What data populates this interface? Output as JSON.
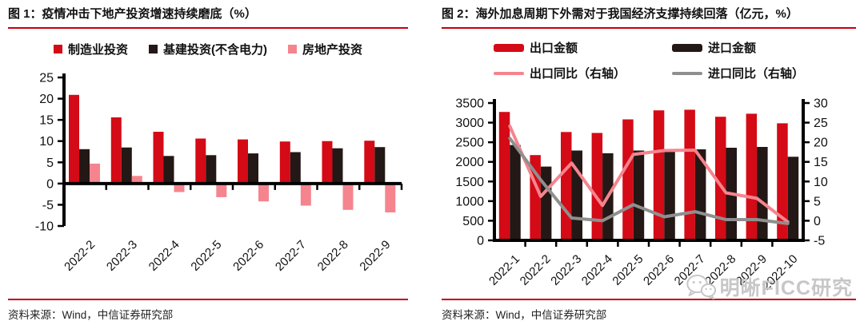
{
  "figure1": {
    "title": "图 1：疫情冲击下地产投资增速持续磨底（%）",
    "source": "资料来源：Wind，中信证券研究部",
    "chart_data": {
      "type": "bar",
      "categories": [
        "2022-2",
        "2022-3",
        "2022-4",
        "2022-5",
        "2022-6",
        "2022-7",
        "2022-8",
        "2022-9"
      ],
      "series": [
        {
          "name": "制造业投资",
          "color": "#d40a16",
          "values": [
            20.9,
            15.6,
            12.2,
            10.6,
            10.4,
            9.9,
            10.0,
            10.1
          ]
        },
        {
          "name": "基建投资(不含电力)",
          "color": "#231815",
          "values": [
            8.1,
            8.5,
            6.5,
            6.7,
            7.1,
            7.4,
            8.3,
            8.6
          ]
        },
        {
          "name": "房地产投资",
          "color": "#f5848e",
          "values": [
            4.7,
            1.8,
            -2.0,
            -3.2,
            -4.2,
            -5.2,
            -6.2,
            -6.8
          ]
        }
      ],
      "ylim": [
        -10,
        25
      ],
      "ytick_step": 5,
      "grid": false,
      "legend_position": "top"
    }
  },
  "figure2": {
    "title": "图 2：海外加息周期下外需对于我国经济支撑持续回落（亿元，%）",
    "source": "资料来源：Wind，中信证券研究部",
    "chart_data": {
      "type": "bar+line",
      "categories": [
        "2022-1",
        "2022-2",
        "2022-3",
        "2022-4",
        "2022-5",
        "2022-6",
        "2022-7",
        "2022-8",
        "2022-9",
        "2022-10"
      ],
      "bar_series": [
        {
          "name": "出口金额",
          "color": "#d40a16",
          "values": [
            3273,
            2174,
            2761,
            2736,
            3082,
            3313,
            3329,
            3149,
            3228,
            2984
          ]
        },
        {
          "name": "进口金额",
          "color": "#231815",
          "values": [
            2430,
            1880,
            2290,
            2220,
            2290,
            2330,
            2320,
            2360,
            2380,
            2130
          ]
        }
      ],
      "line_series": [
        {
          "name": "出口同比（右轴）",
          "color": "#f5848e",
          "values": [
            24.1,
            6.2,
            14.7,
            3.9,
            16.9,
            17.9,
            18.0,
            7.1,
            5.7,
            -0.3
          ]
        },
        {
          "name": "进口同比（右轴）",
          "color": "#8f8f8f",
          "values": [
            21.0,
            10.4,
            0.7,
            0.0,
            4.1,
            1.0,
            2.3,
            0.3,
            0.3,
            -0.7
          ]
        }
      ],
      "ylim_left": [
        0,
        3500
      ],
      "ytick_step_left": 500,
      "ylim_right": [
        -5,
        30
      ],
      "ytick_step_right": 5,
      "grid": false,
      "legend_position": "top"
    }
  },
  "watermark": {
    "text": "明晰FICC研究",
    "icon": "wechat-icon"
  },
  "colors": {
    "accent_red": "#c30010",
    "bar_red": "#d40a16",
    "bar_dark": "#231815",
    "bar_pink": "#f5848e",
    "line_pink": "#f5848e",
    "line_gray": "#8f8f8f",
    "watermark_gray": "#c7c7c7",
    "axis_black": "#000000"
  }
}
